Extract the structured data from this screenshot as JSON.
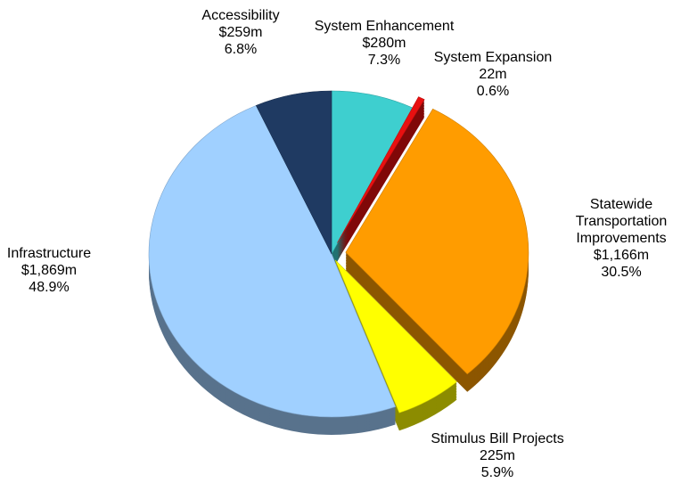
{
  "chart_data": {
    "type": "pie",
    "categories": [
      "System Enhancement",
      "System Expansion",
      "Statewide Transportation Improvements",
      "Stimulus Bill Projects",
      "Infrastructure",
      "Accessibility"
    ],
    "values": [
      280,
      22,
      1166,
      225,
      1869,
      259
    ],
    "value_labels": [
      "$280m",
      "22m",
      "$1,166m",
      "225m",
      "$1,869m",
      "$259m"
    ],
    "percents": [
      7.3,
      0.6,
      30.5,
      5.9,
      48.9,
      6.8
    ],
    "percent_labels": [
      "7.3%",
      "0.6%",
      "30.5%",
      "5.9%",
      "48.9%",
      "6.8%"
    ],
    "colors": [
      "#3ecfcf",
      "#e81010",
      "#ff9c00",
      "#ffff00",
      "#a0d0ff",
      "#1f3a62"
    ]
  }
}
